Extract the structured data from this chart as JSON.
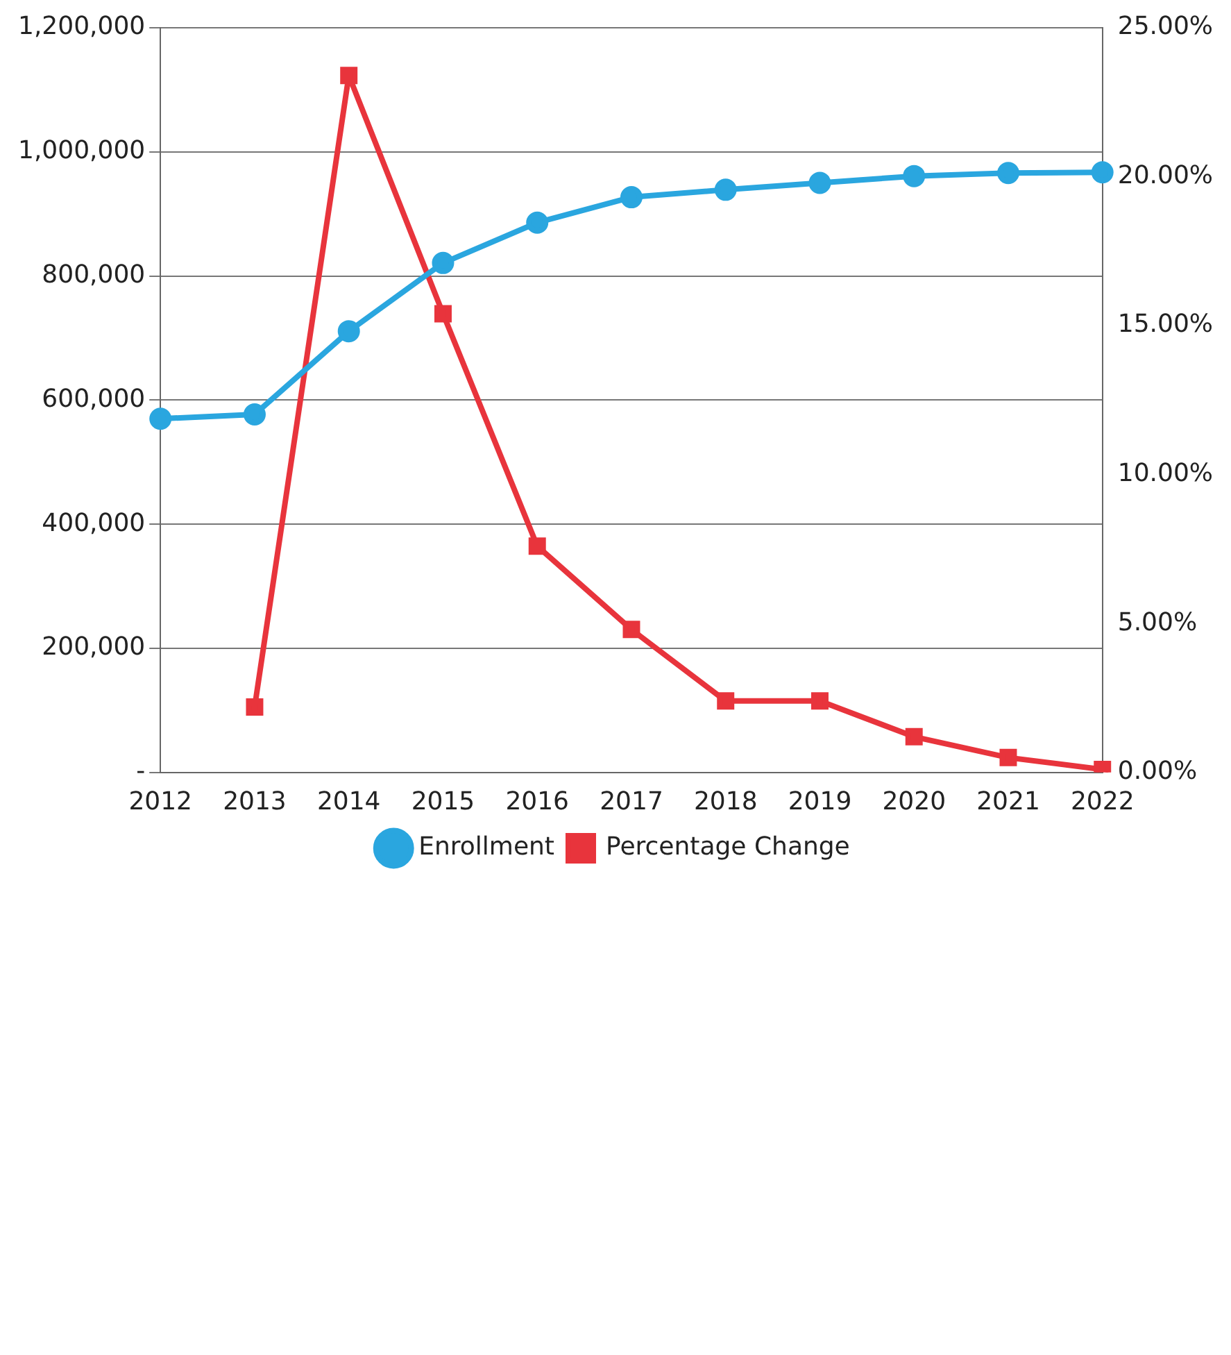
{
  "chart_data": {
    "type": "line",
    "categories": [
      "2012",
      "2013",
      "2014",
      "2015",
      "2016",
      "2017",
      "2018",
      "2019",
      "2020",
      "2021",
      "2022"
    ],
    "series": [
      {
        "name": "Enrollment",
        "color": "#2aa6df",
        "marker": "circle",
        "values": [
          570000,
          577000,
          711000,
          821000,
          886000,
          927000,
          939000,
          950000,
          961000,
          966000,
          967000
        ]
      },
      {
        "name": "Percentage Change",
        "color": "#e8343c",
        "marker": "square",
        "axis": "y2",
        "values": [
          null,
          2.2,
          23.4,
          15.4,
          7.6,
          4.8,
          2.4,
          2.4,
          1.2,
          0.5,
          0.1
        ]
      }
    ],
    "ylim": [
      0,
      1200000
    ],
    "yticks": [
      {
        "value": 0,
        "label": "-"
      },
      {
        "value": 200000,
        "label": "200,000"
      },
      {
        "value": 400000,
        "label": "400,000"
      },
      {
        "value": 600000,
        "label": "600,000"
      },
      {
        "value": 800000,
        "label": "800,000"
      },
      {
        "value": 1000000,
        "label": "1,000,000"
      },
      {
        "value": 1200000,
        "label": "1,200,000"
      }
    ],
    "y2lim": [
      0,
      25
    ],
    "y2ticks": [
      {
        "value": 0,
        "label": "0.00%"
      },
      {
        "value": 5,
        "label": "5.00%"
      },
      {
        "value": 10,
        "label": "10.00%"
      },
      {
        "value": 15,
        "label": "15.00%"
      },
      {
        "value": 20,
        "label": "20.00%"
      },
      {
        "value": 25,
        "label": "25.00%"
      }
    ],
    "grid": "y",
    "legend": "bottom",
    "line_style": "solid"
  }
}
